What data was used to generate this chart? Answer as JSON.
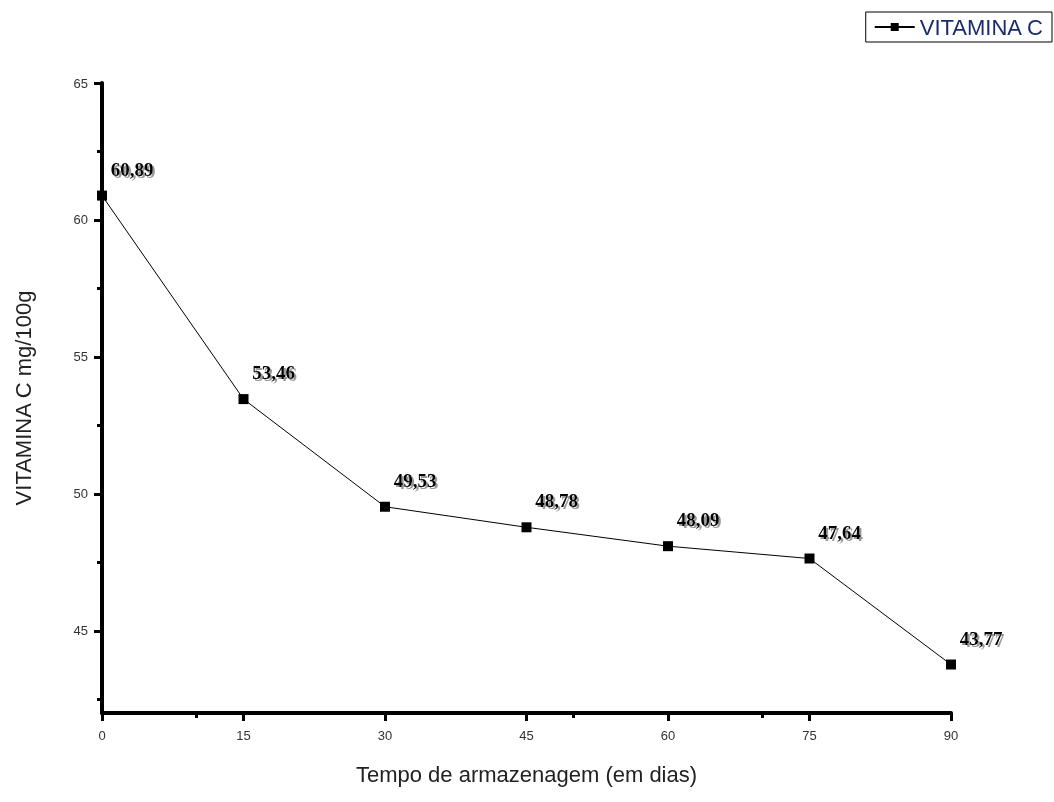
{
  "chart_data": {
    "type": "line",
    "xlabel": "Tempo de armazenagem (em dias)",
    "ylabel": "VITAMINA C mg/100g",
    "x": [
      0,
      15,
      30,
      45,
      60,
      75,
      90
    ],
    "series": [
      {
        "name": "VITAMINA C",
        "color": "#000000",
        "values": [
          60.89,
          53.46,
          49.53,
          48.78,
          48.09,
          47.64,
          43.77
        ],
        "value_labels": [
          "60,89",
          "53,46",
          "49,53",
          "48,78",
          "48,09",
          "47,64",
          "43,77"
        ]
      }
    ],
    "xlim": [
      0,
      90
    ],
    "xticks": [
      0,
      15,
      30,
      45,
      60,
      75,
      90
    ],
    "ylim": [
      42,
      65
    ],
    "yticks": [
      45,
      50,
      55,
      60,
      65
    ],
    "grid": false,
    "legend": "top right",
    "marker": "square",
    "line_style": "solid"
  }
}
